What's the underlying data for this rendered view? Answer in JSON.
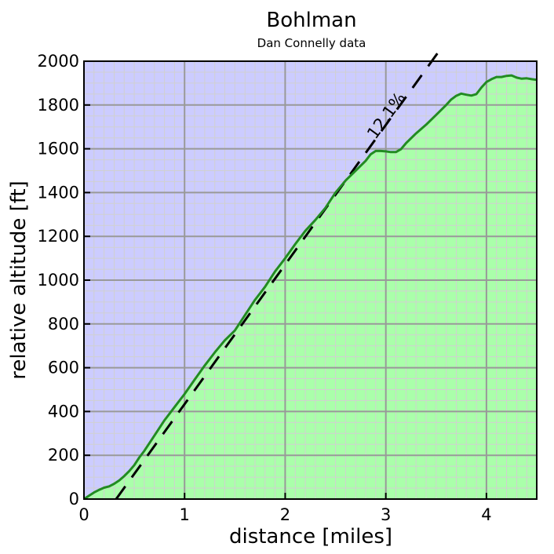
{
  "chart_data": {
    "type": "area",
    "title": "Bohlman",
    "subtitle": "Dan Connelly data",
    "xlabel": "distance [miles]",
    "ylabel": "relative altitude [ft]",
    "xlim": [
      0,
      4.5
    ],
    "ylim": [
      0,
      2000
    ],
    "xticks": [
      0,
      1,
      2,
      3,
      4
    ],
    "yticks": [
      0,
      200,
      400,
      600,
      800,
      1000,
      1200,
      1400,
      1600,
      1800,
      2000
    ],
    "grid": true,
    "colors": {
      "above": "#ccccff",
      "below": "#aaffaa",
      "line": "#228b22",
      "major_grid": "#999999",
      "minor_grid": "#d0d0d0",
      "fit": "#000000"
    },
    "series": [
      {
        "x": [
          0,
          0.05,
          0.1,
          0.15,
          0.2,
          0.25,
          0.3,
          0.35,
          0.4,
          0.45,
          0.5,
          0.55,
          0.6,
          0.7,
          0.8,
          0.9,
          1.0,
          1.1,
          1.2,
          1.3,
          1.4,
          1.5,
          1.6,
          1.7,
          1.8,
          1.9,
          2.0,
          2.1,
          2.2,
          2.3,
          2.4,
          2.5,
          2.6,
          2.7,
          2.8,
          2.85,
          2.9,
          2.95,
          3.0,
          3.05,
          3.1,
          3.15,
          3.2,
          3.3,
          3.4,
          3.5,
          3.6,
          3.65,
          3.7,
          3.75,
          3.8,
          3.85,
          3.9,
          3.95,
          4.0,
          4.05,
          4.1,
          4.15,
          4.2,
          4.25,
          4.3,
          4.35,
          4.4,
          4.45,
          4.5
        ],
        "y": [
          0,
          15,
          30,
          42,
          52,
          58,
          70,
          85,
          105,
          128,
          155,
          190,
          220,
          290,
          360,
          420,
          480,
          545,
          610,
          670,
          725,
          770,
          840,
          910,
          970,
          1040,
          1100,
          1165,
          1225,
          1275,
          1330,
          1400,
          1455,
          1500,
          1545,
          1575,
          1590,
          1590,
          1588,
          1585,
          1585,
          1598,
          1625,
          1670,
          1710,
          1755,
          1800,
          1825,
          1842,
          1852,
          1847,
          1843,
          1850,
          1880,
          1905,
          1918,
          1928,
          1928,
          1933,
          1935,
          1925,
          1920,
          1922,
          1918,
          1915
        ]
      }
    ],
    "fit": {
      "label": "12.1%",
      "x": [
        0.32,
        3.52
      ],
      "y": [
        0,
        2040
      ]
    }
  }
}
